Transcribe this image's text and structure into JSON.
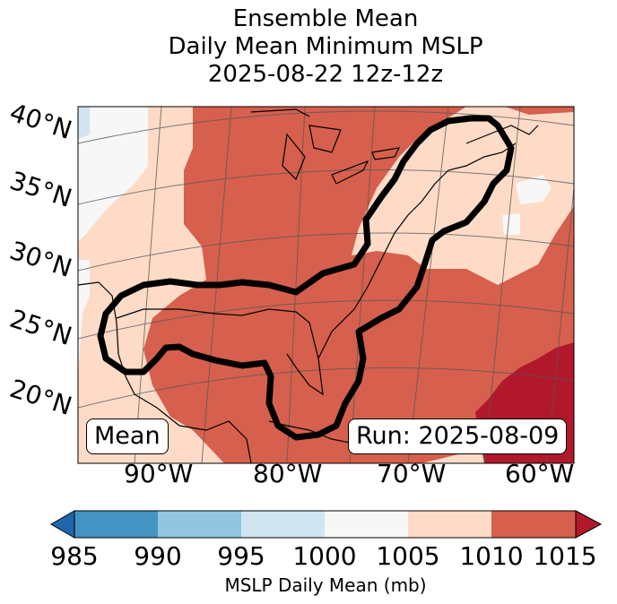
{
  "title": {
    "line1": "Ensemble Mean",
    "line2": "Daily Mean Minimum MSLP",
    "line3": "2025-08-22 12z-12z"
  },
  "map": {
    "lat_labels": [
      "40°N",
      "35°N",
      "30°N",
      "25°N",
      "20°N"
    ],
    "lon_labels": [
      "90°W",
      "80°W",
      "70°W",
      "60°W"
    ],
    "mean_label": "Mean",
    "run_label": "Run: 2025-08-09",
    "colors": {
      "c985": "#4393c3",
      "c990": "#92c5de",
      "c995": "#d1e5f0",
      "c1000": "#f7f7f7",
      "c1005": "#fddbc7",
      "c1010": "#d6604d",
      "c1015": "#b2182b",
      "low_end": "#2166ac"
    }
  },
  "colorbar": {
    "ticks": [
      "985",
      "990",
      "995",
      "1000",
      "1005",
      "1010",
      "1015"
    ],
    "label": "MSLP Daily Mean (mb)"
  }
}
